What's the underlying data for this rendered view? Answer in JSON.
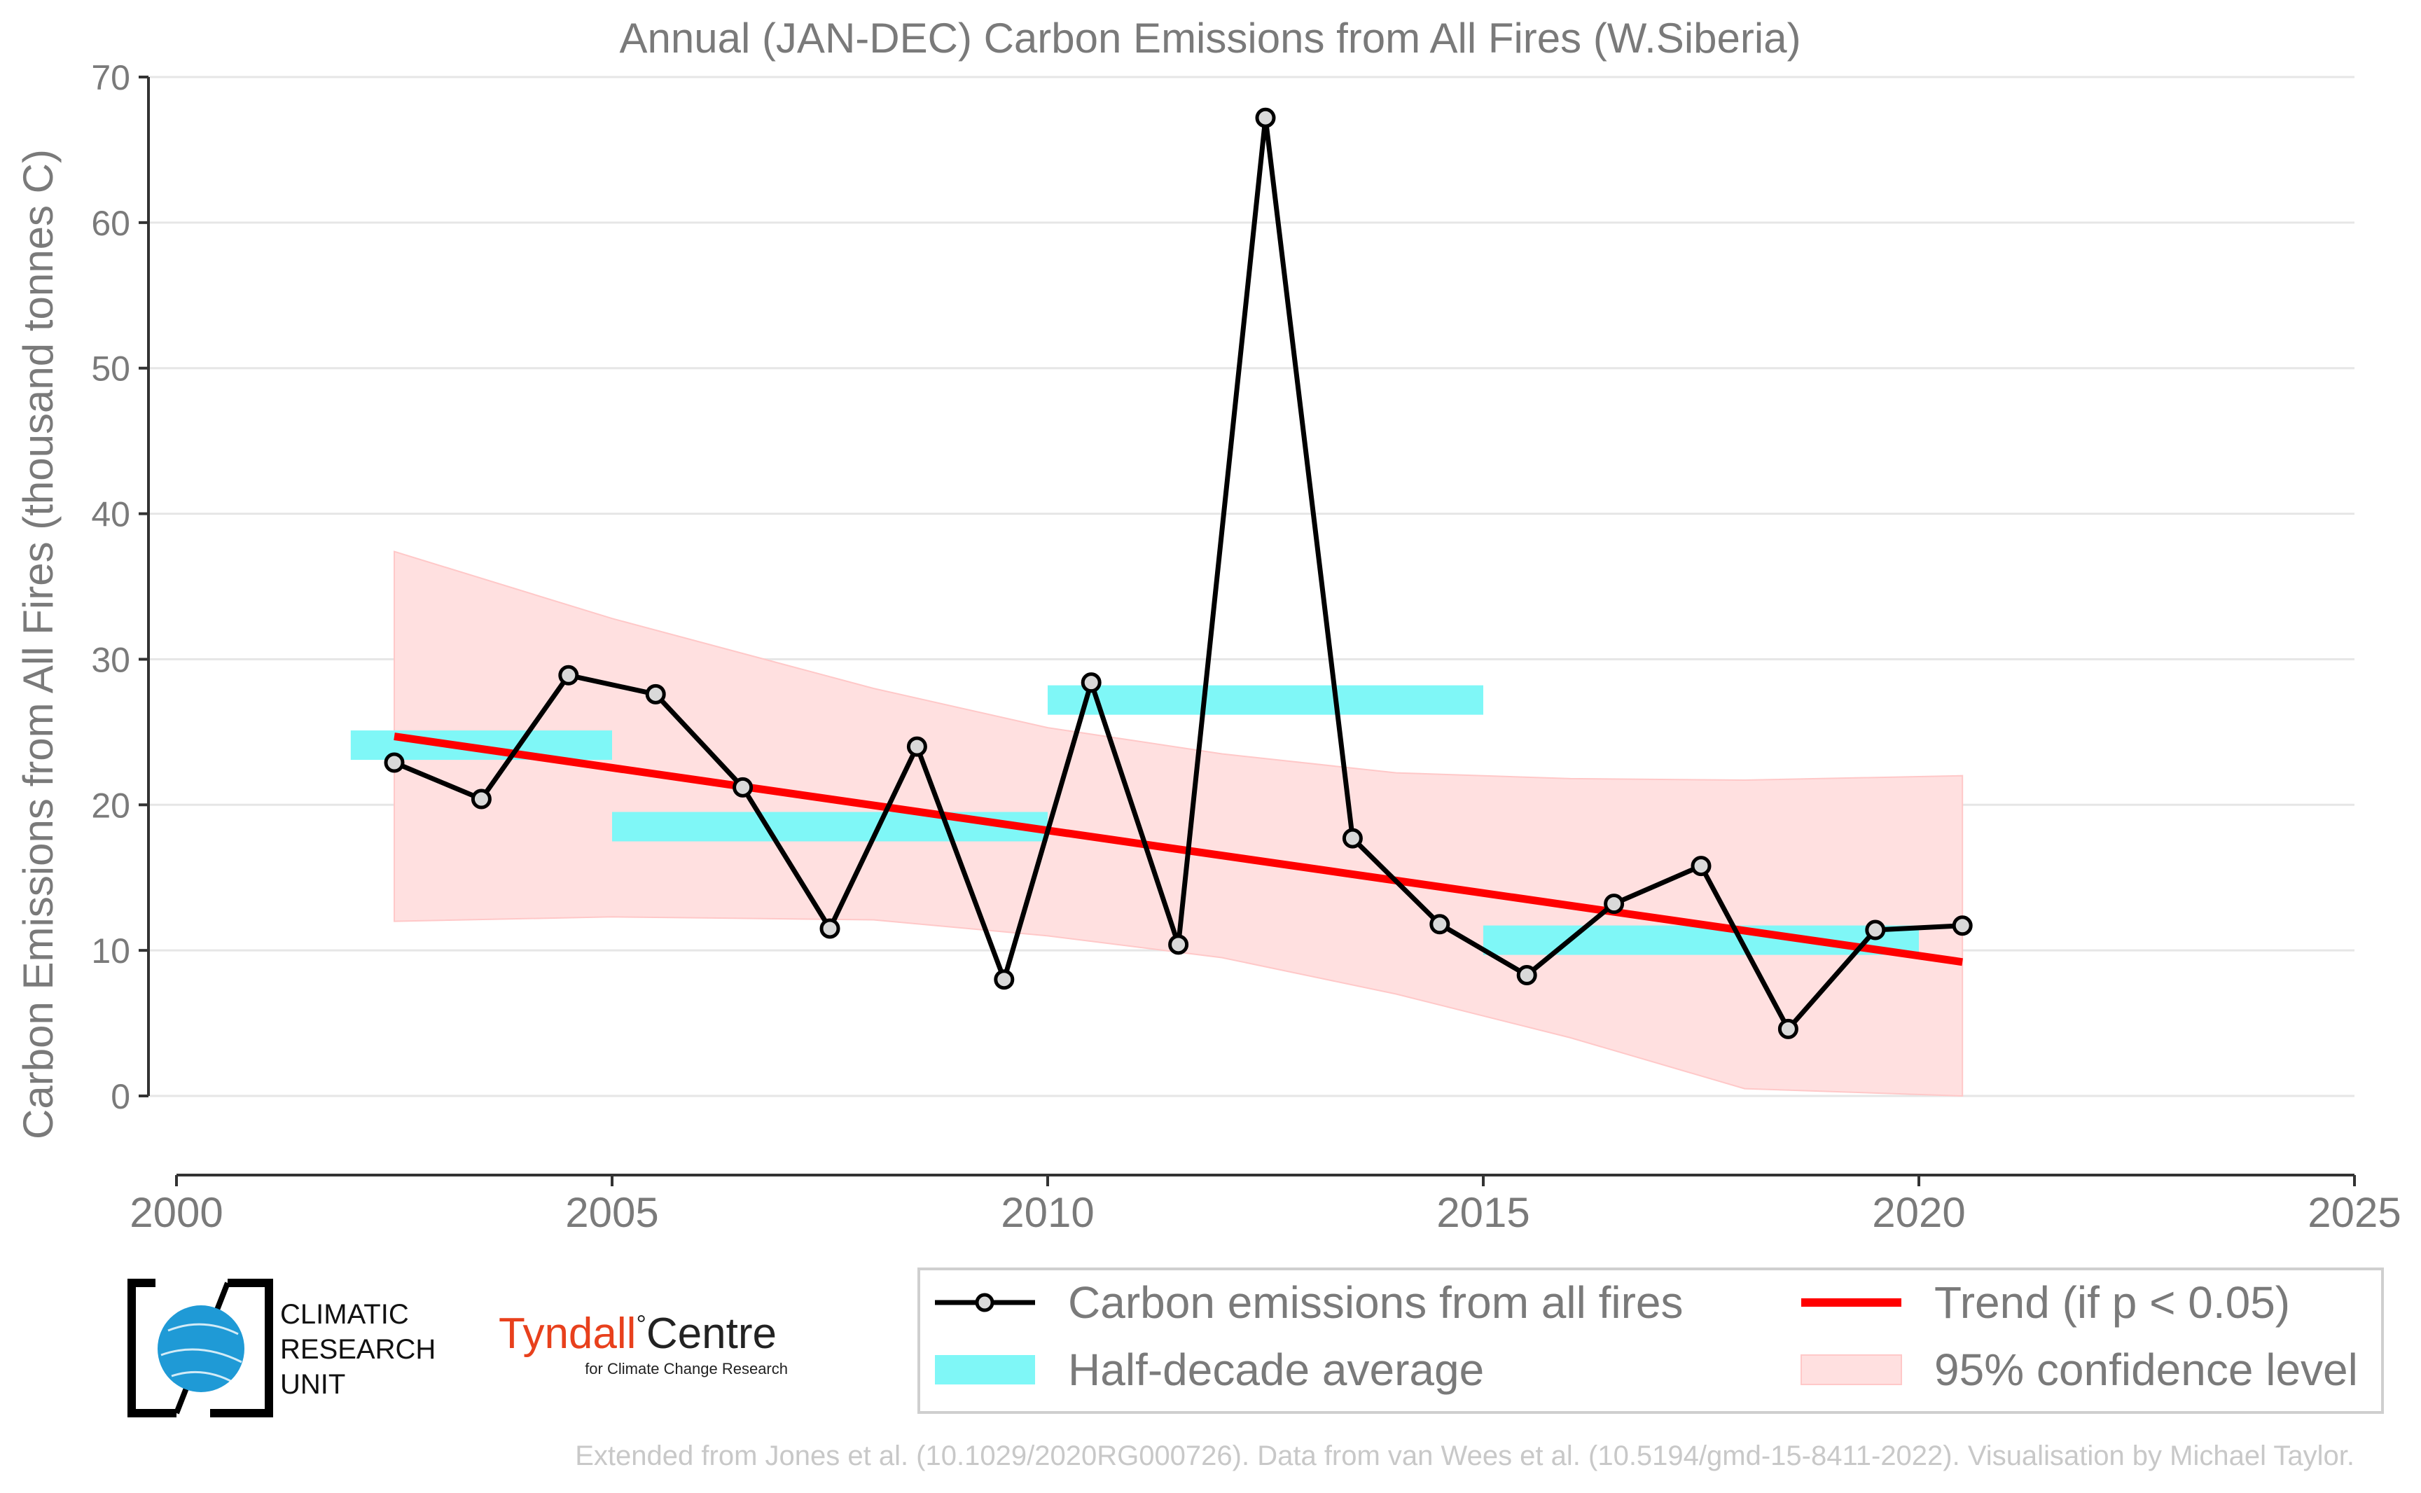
{
  "chart_data": {
    "type": "line",
    "title": "Annual (JAN-DEC) Carbon Emissions from All Fires (W.Siberia)",
    "ylabel": "Carbon Emissions from All Fires (thousand tonnes C)",
    "xlabel": "",
    "xlim": [
      2000,
      2025
    ],
    "ylim": [
      0,
      70
    ],
    "x_ticks": [
      2000,
      2005,
      2010,
      2015,
      2020,
      2025
    ],
    "y_ticks": [
      0,
      10,
      20,
      30,
      40,
      50,
      60,
      70
    ],
    "grid": "horizontal",
    "series": [
      {
        "name": "Carbon emissions from all fires",
        "color": "#000000",
        "x": [
          2002.5,
          2003.5,
          2004.5,
          2005.5,
          2006.5,
          2007.5,
          2008.5,
          2009.5,
          2010.5,
          2011.5,
          2012.5,
          2013.5,
          2014.5,
          2015.5,
          2016.5,
          2017.5,
          2018.5,
          2019.5,
          2020.5
        ],
        "values": [
          22.9,
          20.4,
          28.9,
          27.6,
          21.2,
          11.5,
          24.0,
          8.0,
          28.4,
          10.4,
          67.2,
          17.7,
          11.8,
          8.3,
          13.2,
          15.8,
          4.6,
          11.4,
          11.7
        ]
      }
    ],
    "half_decade_average": {
      "name": "Half-decade average",
      "color": "#7ff7f7",
      "segments": [
        {
          "x0": 2002,
          "x1": 2005,
          "value": 24.1
        },
        {
          "x0": 2005,
          "x1": 2010,
          "value": 18.5
        },
        {
          "x0": 2010,
          "x1": 2015,
          "value": 27.2
        },
        {
          "x0": 2015,
          "x1": 2020,
          "value": 10.7
        }
      ]
    },
    "trend": {
      "name": "Trend (if p < 0.05)",
      "color": "#ff0000",
      "x": [
        2002.5,
        2020.5
      ],
      "values": [
        24.7,
        9.2
      ]
    },
    "confidence": {
      "name": "95% confidence level",
      "color": "#ffe0e0",
      "x": [
        2002.5,
        2005,
        2008,
        2010,
        2012,
        2014,
        2016,
        2018,
        2020.5
      ],
      "upper": [
        37.4,
        32.8,
        28.0,
        25.3,
        23.5,
        22.2,
        21.8,
        21.7,
        22.0
      ],
      "lower": [
        12.0,
        12.3,
        12.1,
        11.0,
        9.5,
        7.0,
        4.0,
        0.5,
        0.0
      ]
    },
    "legend_placement": "bottom-right",
    "footer": "Extended from Jones et al. (10.1029/2020RG000726). Data from van Wees et al. (10.5194/gmd-15-8411-2022). Visualisation by Michael Taylor."
  },
  "logos": {
    "cru": {
      "line1": "CLIMATIC",
      "line2": "RESEARCH",
      "line3": "UNIT",
      "color": "#1f9ad6"
    },
    "tyndall": {
      "main_a": "Tyndall",
      "degree": "°",
      "main_b": "Centre",
      "sub": "for Climate Change Research",
      "color_a": "#e8401c",
      "color_b": "#222222"
    }
  }
}
